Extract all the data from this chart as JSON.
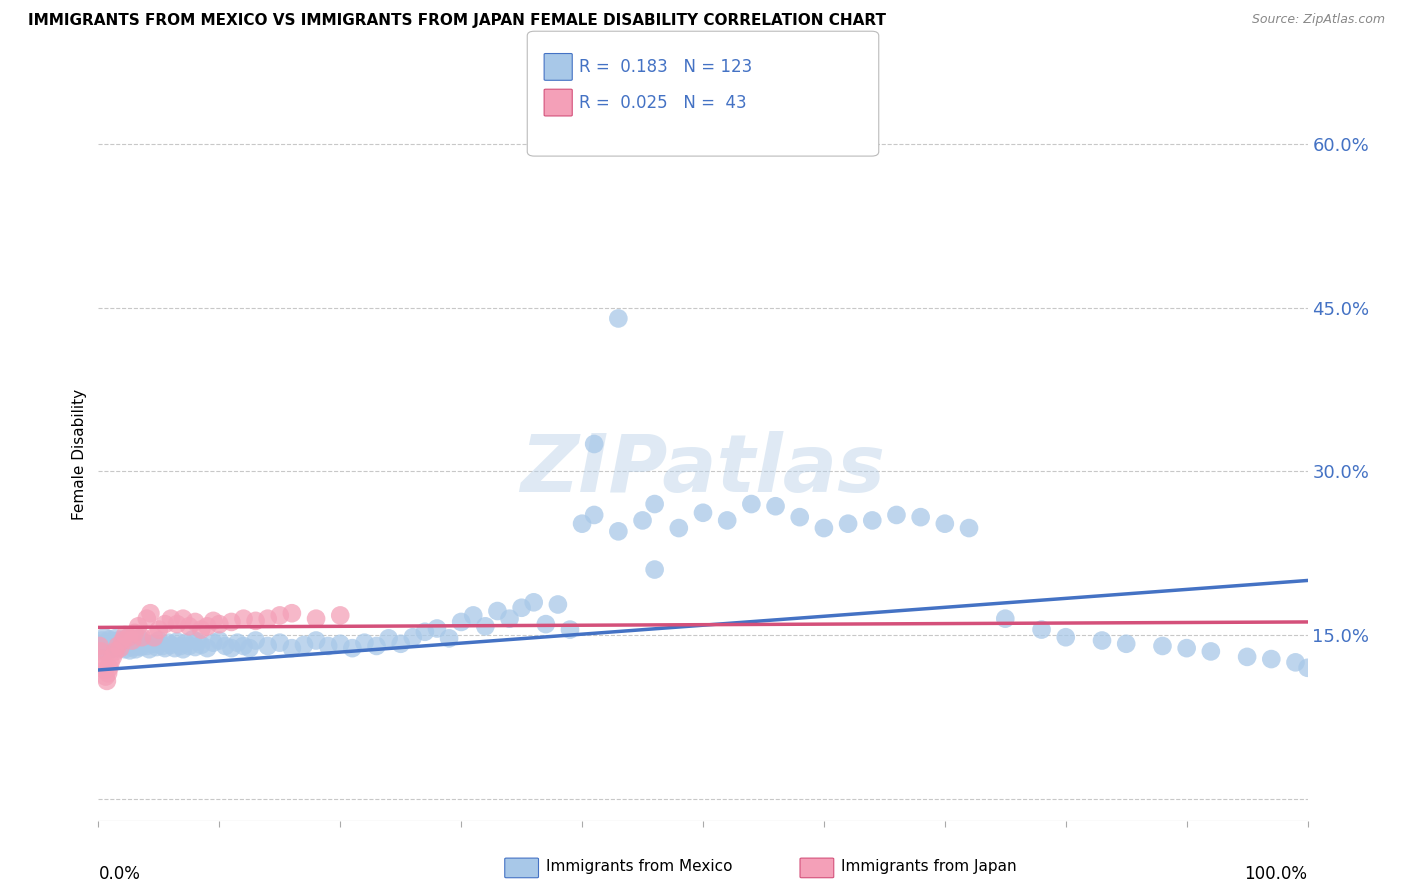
{
  "title": "IMMIGRANTS FROM MEXICO VS IMMIGRANTS FROM JAPAN FEMALE DISABILITY CORRELATION CHART",
  "source": "Source: ZipAtlas.com",
  "ylabel": "Female Disability",
  "xlim": [
    0,
    1.0
  ],
  "ylim": [
    -0.02,
    0.65
  ],
  "ytick_vals": [
    0.0,
    0.15,
    0.3,
    0.45,
    0.6
  ],
  "ytick_labels": [
    "",
    "15.0%",
    "30.0%",
    "45.0%",
    "60.0%"
  ],
  "mexico_R": 0.183,
  "mexico_N": 123,
  "japan_R": 0.025,
  "japan_N": 43,
  "mexico_color": "#a8c8e8",
  "japan_color": "#f4a0b8",
  "mexico_line_color": "#4472c4",
  "japan_line_color": "#d4507a",
  "legend_mexico": "Immigrants from Mexico",
  "legend_japan": "Immigrants from Japan",
  "mexico_scatter_x": [
    0.001,
    0.002,
    0.003,
    0.004,
    0.005,
    0.006,
    0.007,
    0.008,
    0.009,
    0.01,
    0.011,
    0.012,
    0.013,
    0.014,
    0.015,
    0.016,
    0.017,
    0.018,
    0.019,
    0.02,
    0.021,
    0.022,
    0.023,
    0.024,
    0.025,
    0.026,
    0.027,
    0.028,
    0.029,
    0.03,
    0.031,
    0.032,
    0.033,
    0.034,
    0.035,
    0.038,
    0.04,
    0.042,
    0.045,
    0.048,
    0.05,
    0.053,
    0.055,
    0.058,
    0.06,
    0.063,
    0.065,
    0.068,
    0.07,
    0.072,
    0.075,
    0.078,
    0.08,
    0.082,
    0.085,
    0.09,
    0.095,
    0.1,
    0.105,
    0.11,
    0.115,
    0.12,
    0.125,
    0.13,
    0.14,
    0.15,
    0.16,
    0.17,
    0.18,
    0.19,
    0.2,
    0.21,
    0.22,
    0.23,
    0.24,
    0.25,
    0.26,
    0.27,
    0.28,
    0.29,
    0.3,
    0.31,
    0.32,
    0.33,
    0.34,
    0.35,
    0.36,
    0.37,
    0.38,
    0.39,
    0.4,
    0.41,
    0.43,
    0.45,
    0.46,
    0.48,
    0.5,
    0.52,
    0.54,
    0.56,
    0.58,
    0.6,
    0.62,
    0.64,
    0.66,
    0.68,
    0.7,
    0.72,
    0.75,
    0.78,
    0.8,
    0.83,
    0.85,
    0.88,
    0.9,
    0.92,
    0.95,
    0.97,
    0.99,
    1.0,
    0.41,
    0.43,
    0.46
  ],
  "mexico_scatter_y": [
    0.142,
    0.138,
    0.145,
    0.14,
    0.148,
    0.135,
    0.143,
    0.138,
    0.146,
    0.141,
    0.137,
    0.144,
    0.139,
    0.147,
    0.14,
    0.145,
    0.138,
    0.143,
    0.139,
    0.146,
    0.14,
    0.137,
    0.144,
    0.141,
    0.148,
    0.136,
    0.142,
    0.139,
    0.145,
    0.14,
    0.137,
    0.143,
    0.14,
    0.147,
    0.139,
    0.143,
    0.14,
    0.137,
    0.142,
    0.139,
    0.145,
    0.14,
    0.138,
    0.143,
    0.141,
    0.138,
    0.144,
    0.14,
    0.137,
    0.143,
    0.14,
    0.146,
    0.139,
    0.144,
    0.141,
    0.138,
    0.143,
    0.145,
    0.14,
    0.138,
    0.143,
    0.14,
    0.138,
    0.145,
    0.14,
    0.143,
    0.138,
    0.141,
    0.145,
    0.14,
    0.142,
    0.138,
    0.143,
    0.14,
    0.147,
    0.142,
    0.148,
    0.153,
    0.156,
    0.147,
    0.162,
    0.168,
    0.158,
    0.172,
    0.165,
    0.175,
    0.18,
    0.16,
    0.178,
    0.155,
    0.252,
    0.26,
    0.245,
    0.255,
    0.27,
    0.248,
    0.262,
    0.255,
    0.27,
    0.268,
    0.258,
    0.248,
    0.252,
    0.255,
    0.26,
    0.258,
    0.252,
    0.248,
    0.165,
    0.155,
    0.148,
    0.145,
    0.142,
    0.14,
    0.138,
    0.135,
    0.13,
    0.128,
    0.125,
    0.12,
    0.325,
    0.44,
    0.21
  ],
  "japan_scatter_x": [
    0.001,
    0.002,
    0.003,
    0.004,
    0.005,
    0.006,
    0.007,
    0.008,
    0.009,
    0.01,
    0.012,
    0.014,
    0.016,
    0.018,
    0.02,
    0.022,
    0.025,
    0.028,
    0.03,
    0.033,
    0.036,
    0.04,
    0.043,
    0.046,
    0.05,
    0.055,
    0.06,
    0.065,
    0.07,
    0.075,
    0.08,
    0.085,
    0.09,
    0.095,
    0.1,
    0.11,
    0.12,
    0.13,
    0.14,
    0.15,
    0.16,
    0.18,
    0.2
  ],
  "japan_scatter_y": [
    0.14,
    0.135,
    0.128,
    0.122,
    0.118,
    0.112,
    0.108,
    0.115,
    0.12,
    0.125,
    0.13,
    0.135,
    0.14,
    0.138,
    0.145,
    0.15,
    0.148,
    0.145,
    0.152,
    0.158,
    0.148,
    0.165,
    0.17,
    0.148,
    0.155,
    0.16,
    0.165,
    0.16,
    0.165,
    0.158,
    0.162,
    0.155,
    0.158,
    0.163,
    0.16,
    0.162,
    0.165,
    0.163,
    0.165,
    0.168,
    0.17,
    0.165,
    0.168
  ],
  "mexico_line_x0": 0.0,
  "mexico_line_y0": 0.118,
  "mexico_line_x1": 1.0,
  "mexico_line_y1": 0.2,
  "japan_line_x0": 0.0,
  "japan_line_y0": 0.157,
  "japan_line_x1": 1.0,
  "japan_line_y1": 0.162,
  "watermark": "ZIPatlas",
  "bg_color": "#ffffff",
  "grid_color": "#c8c8c8"
}
